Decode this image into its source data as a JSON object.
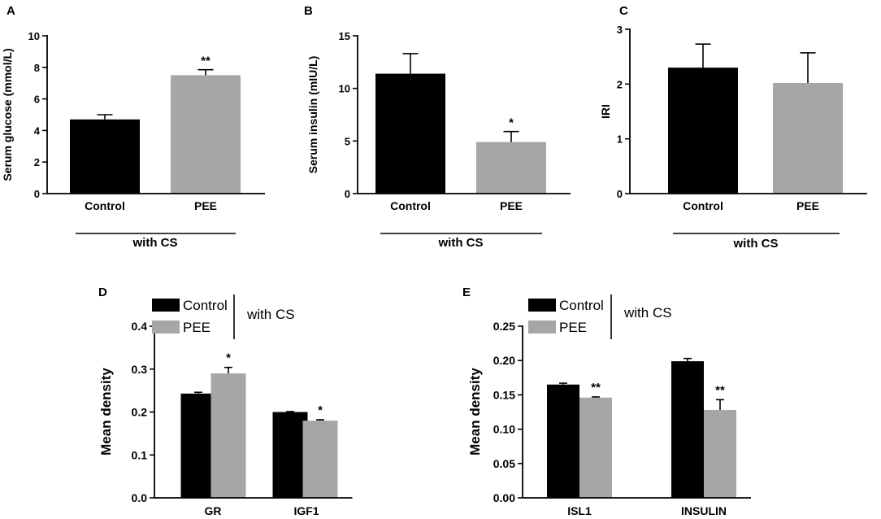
{
  "colors": {
    "control": "#000000",
    "pee": "#a6a6a8",
    "axis": "#000000"
  },
  "chart_data": [
    {
      "panel": "A",
      "type": "bar",
      "ylabel": "Serum glucose (mmol/L)",
      "ylim": [
        0,
        10
      ],
      "yticks": [
        0,
        2,
        4,
        6,
        8,
        10
      ],
      "categories": [
        "Control",
        "PEE"
      ],
      "values": [
        4.7,
        7.5
      ],
      "errors": [
        0.3,
        0.35
      ],
      "significance": [
        "",
        "**"
      ],
      "group_label": "with CS"
    },
    {
      "panel": "B",
      "type": "bar",
      "ylabel": "Serum insulin (mIU/L)",
      "ylim": [
        0,
        15
      ],
      "yticks": [
        0,
        5,
        10,
        15
      ],
      "categories": [
        "Control",
        "PEE"
      ],
      "values": [
        11.4,
        4.9
      ],
      "errors": [
        1.9,
        1.0
      ],
      "significance": [
        "",
        "*"
      ],
      "group_label": "with CS"
    },
    {
      "panel": "C",
      "type": "bar",
      "ylabel": "IRI",
      "ylim": [
        0,
        3
      ],
      "yticks": [
        0,
        1,
        2,
        3
      ],
      "categories": [
        "Control",
        "PEE"
      ],
      "values": [
        2.3,
        2.02
      ],
      "errors": [
        0.43,
        0.55
      ],
      "significance": [
        "",
        ""
      ],
      "group_label": "with CS"
    },
    {
      "panel": "D",
      "type": "bar",
      "ylabel": "Mean density",
      "ylim": [
        0,
        0.4
      ],
      "yticks": [
        "0.0",
        "0.1",
        "0.2",
        "0.3",
        "0.4"
      ],
      "categories": [
        "GR",
        "IGF1"
      ],
      "series": [
        {
          "name": "Control",
          "values": [
            0.243,
            0.2
          ],
          "errors": [
            0.003,
            0.001
          ],
          "significance": [
            "",
            ""
          ]
        },
        {
          "name": "PEE",
          "values": [
            0.29,
            0.18
          ],
          "errors": [
            0.014,
            0.002
          ],
          "significance": [
            "*",
            "*"
          ]
        }
      ],
      "legend_group": "with CS"
    },
    {
      "panel": "E",
      "type": "bar",
      "ylabel": "Mean density",
      "ylim": [
        0,
        0.25
      ],
      "yticks": [
        "0.00",
        "0.05",
        "0.10",
        "0.15",
        "0.20",
        "0.25"
      ],
      "categories": [
        "ISL1",
        "INSULIN"
      ],
      "series": [
        {
          "name": "Control",
          "values": [
            0.165,
            0.199
          ],
          "errors": [
            0.002,
            0.004
          ],
          "significance": [
            "",
            ""
          ]
        },
        {
          "name": "PEE",
          "values": [
            0.146,
            0.128
          ],
          "errors": [
            0.001,
            0.015
          ],
          "significance": [
            "**",
            "**"
          ]
        }
      ],
      "legend_group": "with CS"
    }
  ]
}
